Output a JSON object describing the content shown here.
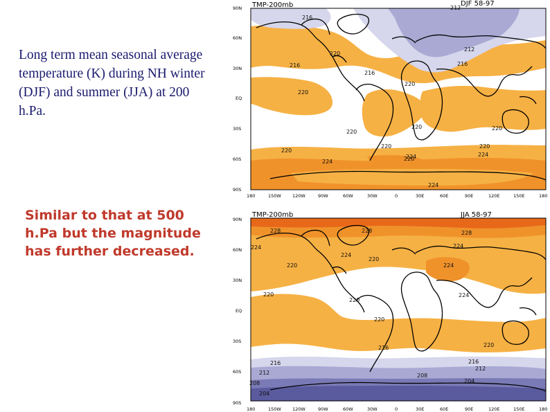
{
  "description": "Long term mean seasonal average temperature (K) during NH winter (DJF) and summer (JJA) at 200 h.Pa.",
  "note": "Similar to that at 500 h.Pa but the magnitude has further decreased.",
  "colors": {
    "t204": "#5a5a9e",
    "t208": "#7a7ab6",
    "t212": "#a9a9d4",
    "t216": "#d6d6ec",
    "t220_224": "#ffffff",
    "t224": "#f6b144",
    "t228": "#f0922a",
    "t232": "#e8681a",
    "land": "#000000"
  },
  "lon_ticks": [
    "180",
    "150W",
    "120W",
    "90W",
    "60W",
    "30W",
    "0",
    "30E",
    "60E",
    "90E",
    "120E",
    "150E",
    "180"
  ],
  "lat_ticks": [
    "90N",
    "60N",
    "30N",
    "EQ",
    "30S",
    "60S",
    "90S"
  ],
  "maps": [
    {
      "title": "TMP-200mb",
      "season": "DJF 58-97",
      "contour_labels": [
        "216",
        "212",
        "220",
        "216",
        "216",
        "212",
        "216",
        "220",
        "220",
        "220",
        "220",
        "220",
        "220",
        "220",
        "220",
        "224",
        "224",
        "224",
        "220",
        "224"
      ]
    },
    {
      "title": "TMP-200mb",
      "season": "JJA 58-97",
      "contour_labels": [
        "228",
        "228",
        "228",
        "224",
        "224",
        "224",
        "220",
        "224",
        "220",
        "220",
        "220",
        "224",
        "220",
        "216",
        "220",
        "216",
        "216",
        "212",
        "212",
        "208",
        "204",
        "204",
        "208"
      ]
    }
  ]
}
